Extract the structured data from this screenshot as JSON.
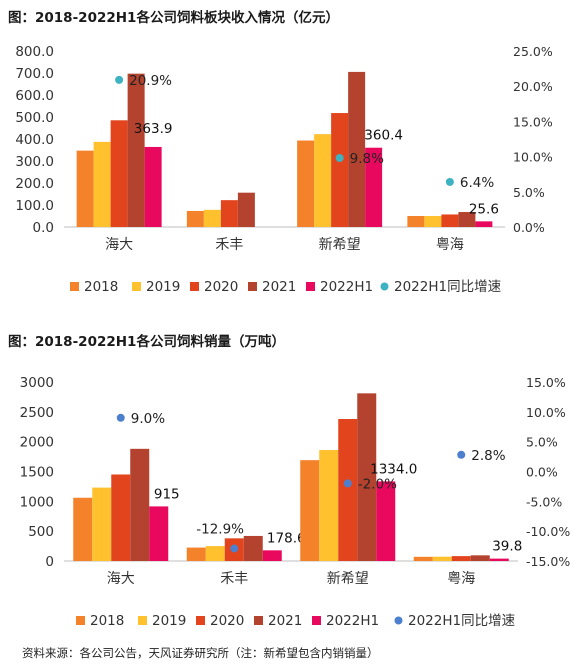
{
  "chart_data": [
    {
      "type": "bar",
      "title": "图：2018-2022H1各公司饲料板块收入情况（亿元）",
      "categories": [
        "海大",
        "禾丰",
        "新希望",
        "粤海"
      ],
      "series": [
        {
          "name": "2018",
          "color": "#F4822A",
          "values": [
            347,
            73,
            393,
            50
          ]
        },
        {
          "name": "2019",
          "color": "#FFC12E",
          "values": [
            387,
            78,
            422,
            50
          ]
        },
        {
          "name": "2020",
          "color": "#E2451E",
          "values": [
            485,
            122,
            518,
            57
          ]
        },
        {
          "name": "2021",
          "color": "#B3432F",
          "values": [
            697,
            156,
            705,
            68
          ]
        },
        {
          "name": "2022H1",
          "color": "#E8095E",
          "values": [
            363.9,
            0,
            360.4,
            25.6
          ]
        }
      ],
      "value_labels": [
        "363.9",
        "",
        "360.4",
        "25.6"
      ],
      "growth": {
        "name": "2022H1同比增速",
        "color": "#3DB2C2",
        "values": [
          20.9,
          null,
          9.8,
          6.4
        ],
        "labels": [
          "20.9%",
          "",
          "9.8%",
          "6.4%"
        ]
      },
      "y_left": {
        "min": 0,
        "max": 800,
        "ticks": [
          "0.0",
          "100.0",
          "200.0",
          "300.0",
          "400.0",
          "500.0",
          "600.0",
          "700.0",
          "800.0"
        ]
      },
      "y_right": {
        "min": 0,
        "max": 25,
        "ticks": [
          "0.0%",
          "5.0%",
          "10.0%",
          "15.0%",
          "20.0%",
          "25.0%"
        ]
      },
      "legend_position": "bottom"
    },
    {
      "type": "bar",
      "title": "图：2018-2022H1各公司饲料销量（万吨）",
      "categories": [
        "海大",
        "禾丰",
        "新希望",
        "粤海"
      ],
      "series": [
        {
          "name": "2018",
          "color": "#F4822A",
          "values": [
            1060,
            225,
            1690,
            70
          ]
        },
        {
          "name": "2019",
          "color": "#FFC12E",
          "values": [
            1230,
            250,
            1860,
            72
          ]
        },
        {
          "name": "2020",
          "color": "#E2451E",
          "values": [
            1450,
            380,
            2380,
            82
          ]
        },
        {
          "name": "2021",
          "color": "#B3432F",
          "values": [
            1880,
            420,
            2810,
            95
          ]
        },
        {
          "name": "2022H1",
          "color": "#E8095E",
          "values": [
            915,
            178.6,
            1334.0,
            39.8
          ]
        }
      ],
      "value_labels": [
        "915",
        "178.6",
        "1334.0",
        "39.8"
      ],
      "growth": {
        "name": "2022H1同比增速",
        "color": "#4D7FCF",
        "values": [
          9.0,
          -12.9,
          -2.0,
          2.8
        ],
        "labels": [
          "9.0%",
          "-12.9%",
          "-2.0%",
          "2.8%"
        ]
      },
      "y_left": {
        "min": 0,
        "max": 3000,
        "ticks": [
          "0",
          "500",
          "1000",
          "1500",
          "2000",
          "2500",
          "3000"
        ]
      },
      "y_right": {
        "min": -15,
        "max": 15,
        "ticks": [
          "-15.0%",
          "-10.0%",
          "-5.0%",
          "0.0%",
          "5.0%",
          "10.0%",
          "15.0%"
        ]
      },
      "legend_position": "bottom"
    }
  ],
  "source_note": "资料来源：各公司公告，天风证券研究所（注：新希望包含内销销量）"
}
